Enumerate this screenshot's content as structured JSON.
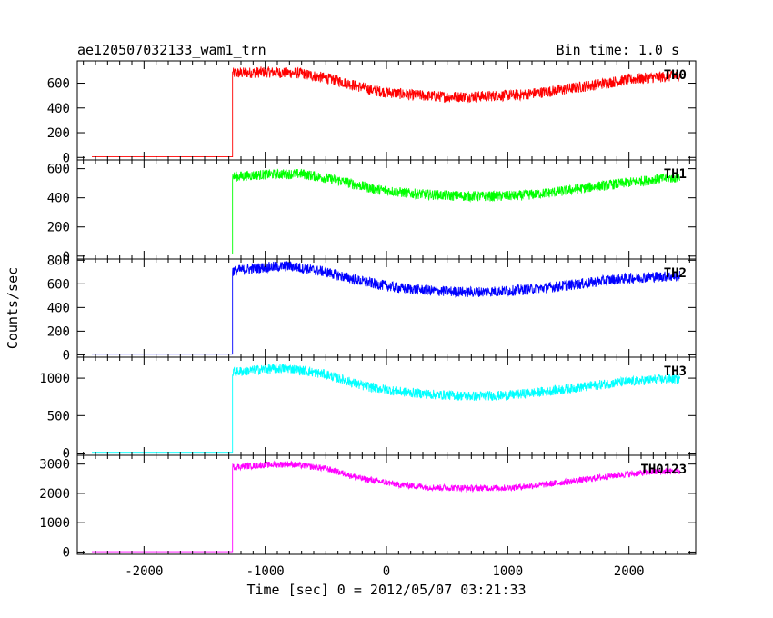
{
  "title": "ae120507032133_wam1_trn",
  "bin_time": "Bin time: 1.0 s",
  "ylabel": "Counts/sec",
  "xlabel": "Time [sec] 0 = 2012/05/07 03:21:33",
  "chart_data": {
    "type": "line",
    "title": "ae120507032133_wam1_trn",
    "subtitle": "Bin time: 1.0 s",
    "xlabel": "Time [sec] 0 = 2012/05/07 03:21:33",
    "ylabel": "Counts/sec",
    "xlim": [
      -2550,
      2550
    ],
    "x_ticks": [
      -2000,
      -1000,
      0,
      1000,
      2000
    ],
    "data_x_range": [
      -2430,
      2420
    ],
    "step_x": -1270,
    "panels": [
      {
        "name": "TH0",
        "color": "#ff0000",
        "ylim": [
          -20,
          780
        ],
        "yticks": [
          0,
          200,
          400,
          600
        ],
        "baseline": 5,
        "noise": 45,
        "points": [
          [
            -1265,
            680
          ],
          [
            -1000,
            690
          ],
          [
            -700,
            680
          ],
          [
            -400,
            620
          ],
          [
            -100,
            540
          ],
          [
            200,
            505
          ],
          [
            500,
            490
          ],
          [
            800,
            495
          ],
          [
            1100,
            505
          ],
          [
            1400,
            540
          ],
          [
            1700,
            585
          ],
          [
            2000,
            630
          ],
          [
            2250,
            650
          ],
          [
            2420,
            660
          ]
        ]
      },
      {
        "name": "TH1",
        "color": "#00ff00",
        "ylim": [
          -20,
          660
        ],
        "yticks": [
          0,
          200,
          400,
          600
        ],
        "baseline": 15,
        "noise": 35,
        "points": [
          [
            -1265,
            545
          ],
          [
            -1000,
            560
          ],
          [
            -700,
            565
          ],
          [
            -400,
            520
          ],
          [
            -100,
            460
          ],
          [
            200,
            430
          ],
          [
            500,
            415
          ],
          [
            800,
            410
          ],
          [
            1100,
            415
          ],
          [
            1400,
            440
          ],
          [
            1700,
            475
          ],
          [
            2000,
            505
          ],
          [
            2250,
            530
          ],
          [
            2420,
            540
          ]
        ]
      },
      {
        "name": "TH2",
        "color": "#0000ff",
        "ylim": [
          -20,
          810
        ],
        "yticks": [
          0,
          200,
          400,
          600,
          800
        ],
        "baseline": 5,
        "noise": 45,
        "points": [
          [
            -1265,
            710
          ],
          [
            -1000,
            740
          ],
          [
            -800,
            750
          ],
          [
            -500,
            700
          ],
          [
            -200,
            620
          ],
          [
            100,
            565
          ],
          [
            400,
            540
          ],
          [
            700,
            530
          ],
          [
            1000,
            540
          ],
          [
            1300,
            565
          ],
          [
            1600,
            600
          ],
          [
            1900,
            640
          ],
          [
            2200,
            660
          ],
          [
            2420,
            665
          ]
        ]
      },
      {
        "name": "TH3",
        "color": "#00ffff",
        "ylim": [
          -30,
          1280
        ],
        "yticks": [
          0,
          500,
          1000
        ],
        "baseline": 10,
        "noise": 65,
        "points": [
          [
            -1265,
            1080
          ],
          [
            -1000,
            1120
          ],
          [
            -800,
            1130
          ],
          [
            -500,
            1050
          ],
          [
            -200,
            900
          ],
          [
            100,
            820
          ],
          [
            400,
            780
          ],
          [
            700,
            760
          ],
          [
            1000,
            770
          ],
          [
            1300,
            820
          ],
          [
            1600,
            880
          ],
          [
            1900,
            940
          ],
          [
            2200,
            980
          ],
          [
            2420,
            990
          ]
        ]
      },
      {
        "name": "TH0123",
        "color": "#ff00ff",
        "ylim": [
          -80,
          3300
        ],
        "yticks": [
          0,
          1000,
          2000,
          3000
        ],
        "baseline": 10,
        "noise": 110,
        "points": [
          [
            -1265,
            2900
          ],
          [
            -1000,
            2970
          ],
          [
            -800,
            3000
          ],
          [
            -500,
            2850
          ],
          [
            -200,
            2500
          ],
          [
            100,
            2300
          ],
          [
            400,
            2200
          ],
          [
            700,
            2180
          ],
          [
            1000,
            2190
          ],
          [
            1300,
            2300
          ],
          [
            1600,
            2450
          ],
          [
            1900,
            2620
          ],
          [
            2200,
            2730
          ],
          [
            2420,
            2760
          ]
        ]
      }
    ]
  }
}
